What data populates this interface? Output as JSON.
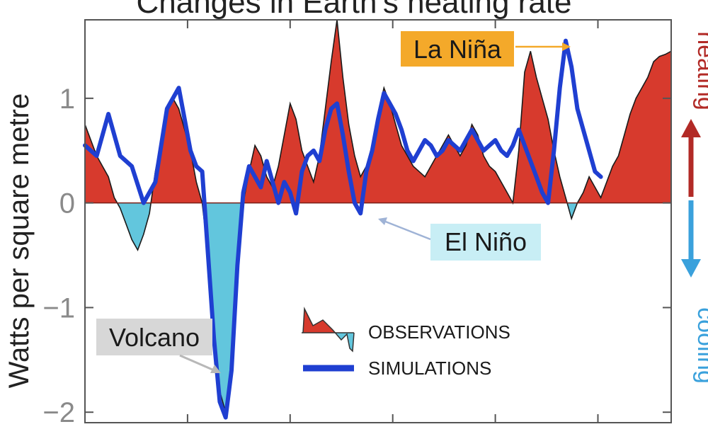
{
  "colors": {
    "heating": "#d73a2d",
    "cooling": "#62c6dd",
    "simulation": "#1f3fd1",
    "heating_arrow": "#b22a26",
    "cooling_arrow": "#3aa1dc",
    "la_nina_box": "#f4a92a",
    "el_nino_box": "#c8eef5",
    "volcano_box": "#d7d7d7"
  },
  "chart_data": {
    "type": "area",
    "title": "Changes in Earth's heating rate",
    "ylabel": "Watts per square metre",
    "ylim": [
      -2.1,
      1.75
    ],
    "xlim": [
      0,
      100
    ],
    "yticks": [
      {
        "value": 1,
        "label": "1"
      },
      {
        "value": 0,
        "label": "0"
      },
      {
        "value": -1,
        "label": "−1"
      },
      {
        "value": -2,
        "label": "−2"
      }
    ],
    "xticks": [
      0,
      17.5,
      35,
      52.5,
      70,
      87.5
    ],
    "series": [
      {
        "name": "OBSERVATIONS",
        "kind": "filled-area",
        "x": [
          0,
          1,
          2,
          3,
          4,
          5,
          6,
          7,
          8,
          9,
          10,
          11,
          12,
          13,
          14,
          15,
          16,
          17,
          18,
          19,
          20,
          21,
          22,
          23,
          24,
          25,
          26,
          27,
          28,
          29,
          30,
          31,
          32,
          33,
          34,
          35,
          36,
          37,
          38,
          39,
          40,
          41,
          42,
          43,
          44,
          45,
          46,
          47,
          48,
          49,
          50,
          51,
          52,
          53,
          54,
          55,
          56,
          57,
          58,
          59,
          60,
          61,
          62,
          63,
          64,
          65,
          66,
          67,
          68,
          69,
          70,
          71,
          72,
          73,
          74,
          75,
          76,
          77,
          78,
          79,
          80,
          81,
          82,
          83,
          84,
          85,
          86,
          87,
          88,
          89,
          90,
          91,
          92,
          93,
          94,
          95,
          96,
          97,
          98,
          99,
          100
        ],
        "values": [
          0.75,
          0.6,
          0.45,
          0.35,
          0.25,
          0.05,
          -0.05,
          -0.2,
          -0.35,
          -0.45,
          -0.3,
          -0.1,
          0.3,
          0.6,
          0.9,
          1.0,
          0.9,
          0.7,
          0.5,
          0.2,
          0.0,
          -0.5,
          -1.2,
          -1.8,
          -2.0,
          -1.6,
          -0.7,
          0.0,
          0.3,
          0.55,
          0.45,
          0.25,
          0.15,
          0.35,
          0.65,
          0.95,
          0.8,
          0.5,
          0.35,
          0.2,
          0.45,
          0.9,
          1.35,
          1.75,
          1.2,
          0.75,
          0.45,
          0.25,
          0.35,
          0.55,
          0.85,
          1.1,
          0.95,
          0.75,
          0.55,
          0.45,
          0.35,
          0.3,
          0.25,
          0.35,
          0.45,
          0.55,
          0.65,
          0.55,
          0.45,
          0.55,
          0.75,
          0.65,
          0.45,
          0.35,
          0.3,
          0.2,
          0.1,
          0.0,
          0.5,
          1.25,
          1.45,
          1.2,
          1.0,
          0.8,
          0.5,
          0.25,
          0.05,
          -0.15,
          0.0,
          0.1,
          0.25,
          0.15,
          0.05,
          0.2,
          0.35,
          0.45,
          0.65,
          0.85,
          1.0,
          1.1,
          1.2,
          1.35,
          1.4,
          1.42,
          1.45
        ]
      },
      {
        "name": "SIMULATIONS",
        "kind": "line",
        "x": [
          0,
          2,
          4,
          6,
          8,
          10,
          12,
          14,
          16,
          17,
          18,
          19,
          20,
          21,
          22,
          23,
          24,
          25,
          26,
          27,
          28,
          29,
          30,
          31,
          32,
          33,
          34,
          35,
          36,
          37,
          38,
          39,
          40,
          41,
          42,
          43,
          44,
          45,
          46,
          47,
          48,
          49,
          50,
          51,
          52,
          53,
          54,
          55,
          56,
          57,
          58,
          59,
          60,
          61,
          62,
          63,
          64,
          65,
          66,
          67,
          68,
          69,
          70,
          71,
          72,
          73,
          74,
          75,
          76,
          77,
          78,
          79,
          80,
          81,
          82,
          83,
          84,
          85,
          86,
          87,
          88
        ],
        "values": [
          0.55,
          0.45,
          0.85,
          0.45,
          0.35,
          0.0,
          0.2,
          0.9,
          1.1,
          0.8,
          0.5,
          0.35,
          0.3,
          -0.5,
          -1.3,
          -1.9,
          -2.05,
          -1.6,
          -0.6,
          0.1,
          0.35,
          0.25,
          0.15,
          0.4,
          0.2,
          0.0,
          0.2,
          0.1,
          -0.1,
          0.3,
          0.45,
          0.5,
          0.4,
          0.7,
          0.9,
          0.95,
          0.65,
          0.3,
          0.0,
          -0.1,
          0.3,
          0.5,
          0.8,
          1.05,
          0.95,
          0.85,
          0.7,
          0.5,
          0.4,
          0.5,
          0.6,
          0.55,
          0.45,
          0.5,
          0.6,
          0.55,
          0.5,
          0.6,
          0.7,
          0.6,
          0.5,
          0.55,
          0.6,
          0.5,
          0.45,
          0.55,
          0.7,
          0.55,
          0.4,
          0.25,
          0.1,
          0.0,
          0.5,
          1.1,
          1.55,
          1.3,
          0.9,
          0.7,
          0.5,
          0.3,
          0.25
        ]
      }
    ],
    "annotations": [
      {
        "id": "la-nina",
        "text": "La Niña",
        "x": 83,
        "y": 1.52
      },
      {
        "id": "el-nino",
        "text": "El Niño",
        "x": 49,
        "y": -0.18
      },
      {
        "id": "volcano",
        "text": "Volcano",
        "x": 24,
        "y": -1.85
      }
    ],
    "legend_placement": "bottom-center",
    "side_labels": {
      "top": "heating",
      "bottom": "cooling"
    },
    "grid": false
  }
}
